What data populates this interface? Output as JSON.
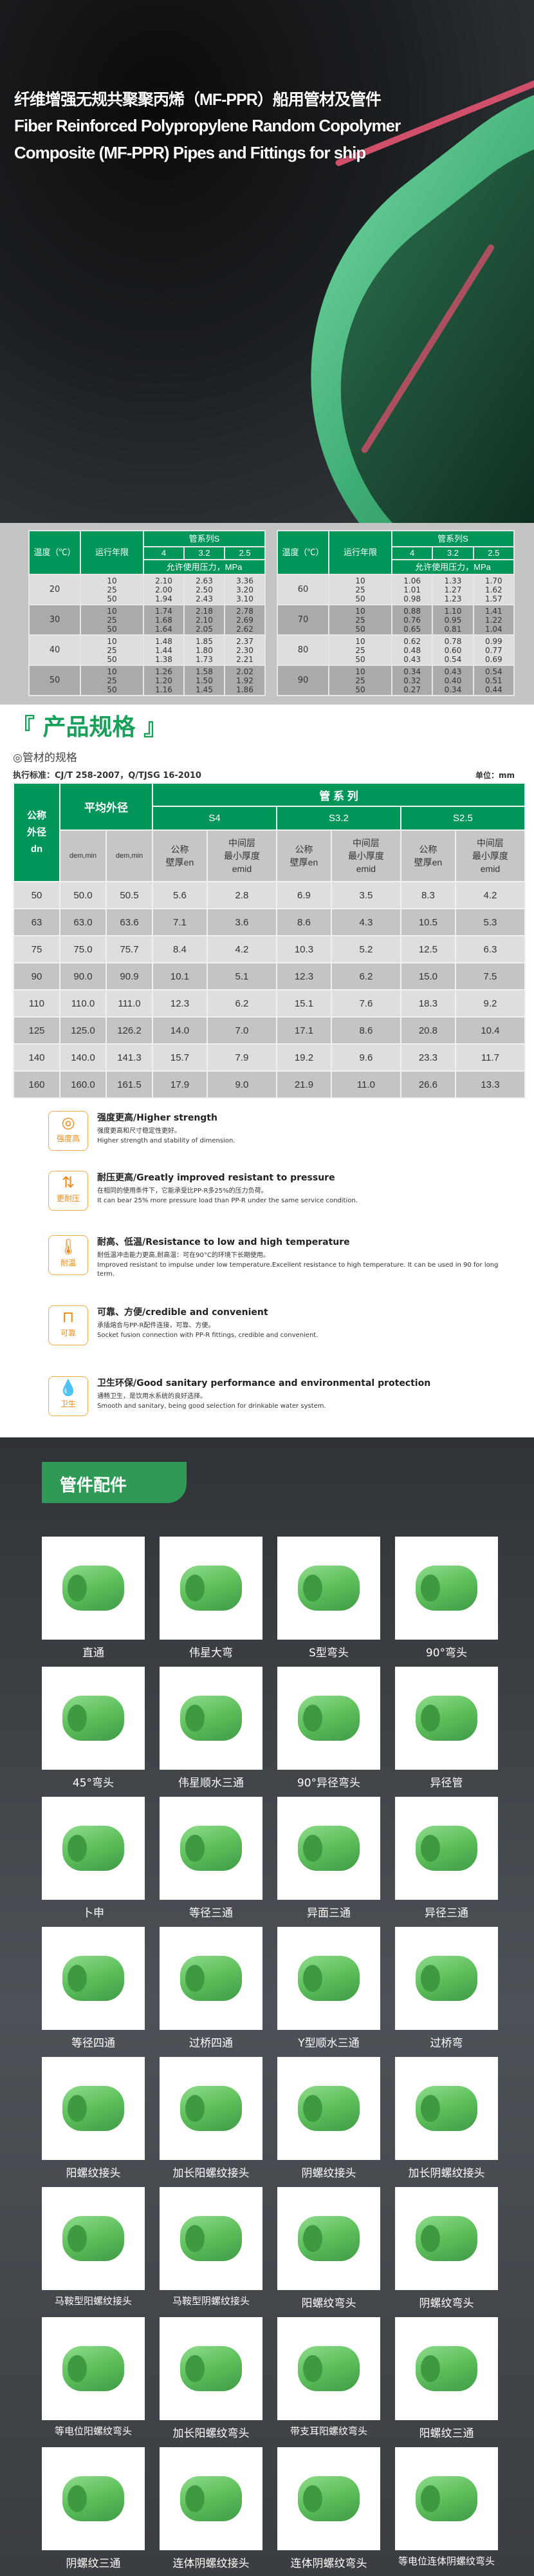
{
  "hero": {
    "title_cn": "纤维增强无规共聚聚丙烯（MF-PPR）船用管材及管件",
    "title_en_1": "Fiber Reinforced Polypropylene Random Copolymer",
    "title_en_2": "Composite (MF-PPR) Pipes and Fittings for ship"
  },
  "pressure_table": {
    "headers": {
      "temp": "温度（℃）",
      "years": "运行年限",
      "series": "管系列S",
      "s": [
        "4",
        "3.2",
        "2.5"
      ],
      "pressure": "允许使用压力，MPa"
    },
    "left": [
      {
        "temp": "20",
        "years": "10\n25\n50",
        "c1": "2.10\n2.00\n1.94",
        "c2": "2.63\n2.50\n2.43",
        "c3": "3.36\n3.20\n3.10"
      },
      {
        "temp": "30",
        "years": "10\n25\n50",
        "c1": "1.74\n1.68\n1.64",
        "c2": "2.18\n2.10\n2.05",
        "c3": "2.78\n2.69\n2.62"
      },
      {
        "temp": "40",
        "years": "10\n25\n50",
        "c1": "1.48\n1.44\n1.38",
        "c2": "1.85\n1.80\n1.73",
        "c3": "2.37\n2.30\n2.21"
      },
      {
        "temp": "50",
        "years": "10\n25\n50",
        "c1": "1.26\n1.20\n1.16",
        "c2": "1.58\n1.50\n1.45",
        "c3": "2.02\n1.92\n1.86"
      }
    ],
    "right": [
      {
        "temp": "60",
        "years": "10\n25\n50",
        "c1": "1.06\n1.01\n0.98",
        "c2": "1.33\n1.27\n1.23",
        "c3": "1.70\n1.62\n1.57"
      },
      {
        "temp": "70",
        "years": "10\n25\n50",
        "c1": "0.88\n0.76\n0.65",
        "c2": "1.10\n0.95\n0.81",
        "c3": "1.41\n1.22\n1.04"
      },
      {
        "temp": "80",
        "years": "10\n25\n50",
        "c1": "0.62\n0.48\n0.43",
        "c2": "0.78\n0.60\n0.54",
        "c3": "0.99\n0.77\n0.69"
      },
      {
        "temp": "90",
        "years": "10\n25\n50",
        "c1": "0.34\n0.32\n0.27",
        "c2": "0.43\n0.40\n0.34",
        "c3": "0.54\n0.51\n0.44"
      }
    ]
  },
  "spec": {
    "section_title": "『 产品规格 』",
    "subtitle": "◎管材的规格",
    "standard": "执行标准：CJ/T 258-2007，Q/TJSG 16-2010",
    "unit": "单位：mm",
    "headers": {
      "dn": "公称\n外径\ndn",
      "avg": "平均外径",
      "series": "管 系 列",
      "s4": "S4",
      "s32": "S3.2",
      "s25": "S2.5",
      "dmin": "dem,min",
      "dmax": "dem,min",
      "en": "公称\n壁厚en",
      "emid": "中间层\n最小厚度\nemid"
    },
    "rows": [
      [
        "50",
        "50.0",
        "50.5",
        "5.6",
        "2.8",
        "6.9",
        "3.5",
        "8.3",
        "4.2"
      ],
      [
        "63",
        "63.0",
        "63.6",
        "7.1",
        "3.6",
        "8.6",
        "4.3",
        "10.5",
        "5.3"
      ],
      [
        "75",
        "75.0",
        "75.7",
        "8.4",
        "4.2",
        "10.3",
        "5.2",
        "12.5",
        "6.3"
      ],
      [
        "90",
        "90.0",
        "90.9",
        "10.1",
        "5.1",
        "12.3",
        "6.2",
        "15.0",
        "7.5"
      ],
      [
        "110",
        "110.0",
        "111.0",
        "12.3",
        "6.2",
        "15.1",
        "7.6",
        "18.3",
        "9.2"
      ],
      [
        "125",
        "125.0",
        "126.2",
        "14.0",
        "7.0",
        "17.1",
        "8.6",
        "20.8",
        "10.4"
      ],
      [
        "140",
        "140.0",
        "141.3",
        "15.7",
        "7.9",
        "19.2",
        "9.6",
        "23.3",
        "11.7"
      ],
      [
        "160",
        "160.0",
        "161.5",
        "17.9",
        "9.0",
        "21.9",
        "11.0",
        "26.6",
        "13.3"
      ]
    ]
  },
  "features": [
    {
      "icon": "ring-icon",
      "glyph": "◎",
      "icon_label": "强度高",
      "title": "强度更高/Higher strength",
      "cn": "强度更高和尺寸稳定性更好。",
      "en": "Higher strength and stability of dimension."
    },
    {
      "icon": "pressure-arrows-icon",
      "glyph": "⇅",
      "icon_label": "更耐压",
      "title": "耐压更高/Greatly improved resistant to pressure",
      "cn": "在相同的使用条件下，它能承受比PP-R多25%的压力负荷。",
      "en": "It can bear 25% more pressure load than PP-R under the same service condition."
    },
    {
      "icon": "thermometer-icon",
      "glyph": "🌡",
      "icon_label": "耐温",
      "title": "耐高、低温/Resistance to low and high temperature",
      "cn": "耐低温冲击能力更高,耐高温：可在90°C的环境下长期使用。",
      "en": "Improved resistant to impulse under low temperature.Excellent resistance to high temperature. It can be used in 90   for long term."
    },
    {
      "icon": "pipe-icon",
      "glyph": "⊓",
      "icon_label": "可靠",
      "title": "可靠、方便/credible and convenient",
      "cn": "承插熔合与PP-R配件连接，可靠、方便。",
      "en": "Socket fusion connection with PP-R fittings, credible and convenient."
    },
    {
      "icon": "water-drop-icon",
      "glyph": "💧",
      "icon_label": "卫生",
      "title": "卫生环保/Good sanitary performance and environmental protection",
      "cn": "通畅卫生，是饮用水系统的良好选择。",
      "en": "Smooth and sanitary, being good selection for drinkable water system."
    }
  ],
  "fittings": {
    "title": "管件配件",
    "items": [
      "直通",
      "伟星大弯",
      "S型弯头",
      "90°弯头",
      "45°弯头",
      "伟星顺水三通",
      "90°异径弯头",
      "异径管",
      "卜申",
      "等径三通",
      "异面三通",
      "异径三通",
      "等径四通",
      "过桥四通",
      "Y型顺水三通",
      "过桥弯",
      "阳螺纹接头",
      "加长阳螺纹接头",
      "阴螺纹接头",
      "加长阴螺纹接头",
      "马鞍型阳螺纹接头",
      "马鞍型阴螺纹接头",
      "阳螺纹弯头",
      "阴螺纹弯头",
      "等电位阳螺纹弯头",
      "加长阳螺纹弯头",
      "带支耳阳螺纹弯头",
      "阳螺纹三通",
      "阴螺纹三通",
      "连体阴螺纹接头",
      "连体阴螺纹弯头",
      "等电位连体阴螺纹弯头"
    ]
  },
  "colors": {
    "green": "#00965a",
    "orange": "#f08a14",
    "title_green": "#19a05a"
  }
}
